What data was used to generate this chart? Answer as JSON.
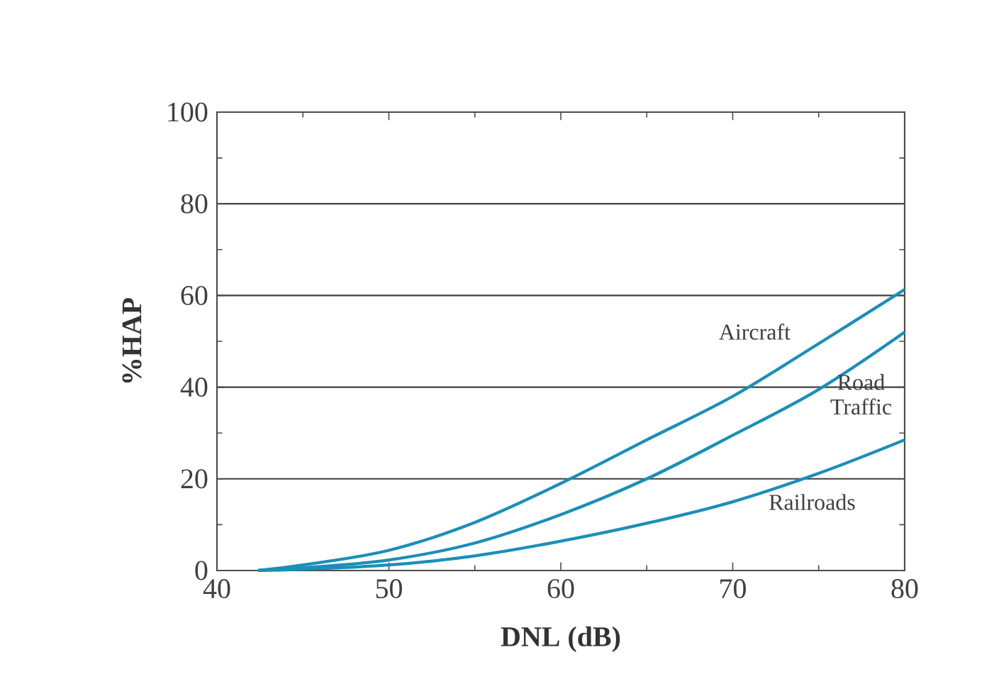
{
  "chart_data": {
    "type": "line",
    "xlabel": "DNL (dB)",
    "ylabel": "%HAP",
    "xlim": [
      40,
      80
    ],
    "xticks": [
      40,
      50,
      60,
      70,
      80
    ],
    "ylim": [
      0,
      100
    ],
    "yticks": [
      0,
      20,
      40,
      60,
      80,
      100
    ],
    "grid": "y",
    "legend": false,
    "marker": "none",
    "line_style": "solid",
    "series": [
      {
        "name": "Aircraft",
        "color": "#1a8fb8",
        "x": [
          42.4,
          45,
          50,
          55,
          60,
          65,
          70,
          75,
          80
        ],
        "values": [
          0,
          1.2,
          4.4,
          10.5,
          19,
          28.5,
          38,
          49.5,
          61.3
        ]
      },
      {
        "name": "Road Traffic",
        "color": "#1a8fb8",
        "x": [
          42.4,
          45,
          50,
          55,
          60,
          65,
          70,
          75,
          80
        ],
        "values": [
          0,
          0.6,
          2.3,
          6,
          12.2,
          20,
          29.5,
          39.5,
          52
        ]
      },
      {
        "name": "Railroads",
        "color": "#1a8fb8",
        "x": [
          42.4,
          45,
          50,
          55,
          60,
          65,
          70,
          75,
          80
        ],
        "values": [
          0,
          0.3,
          1.2,
          3.2,
          6.4,
          10.3,
          15,
          21.2,
          28.5
        ]
      }
    ]
  }
}
